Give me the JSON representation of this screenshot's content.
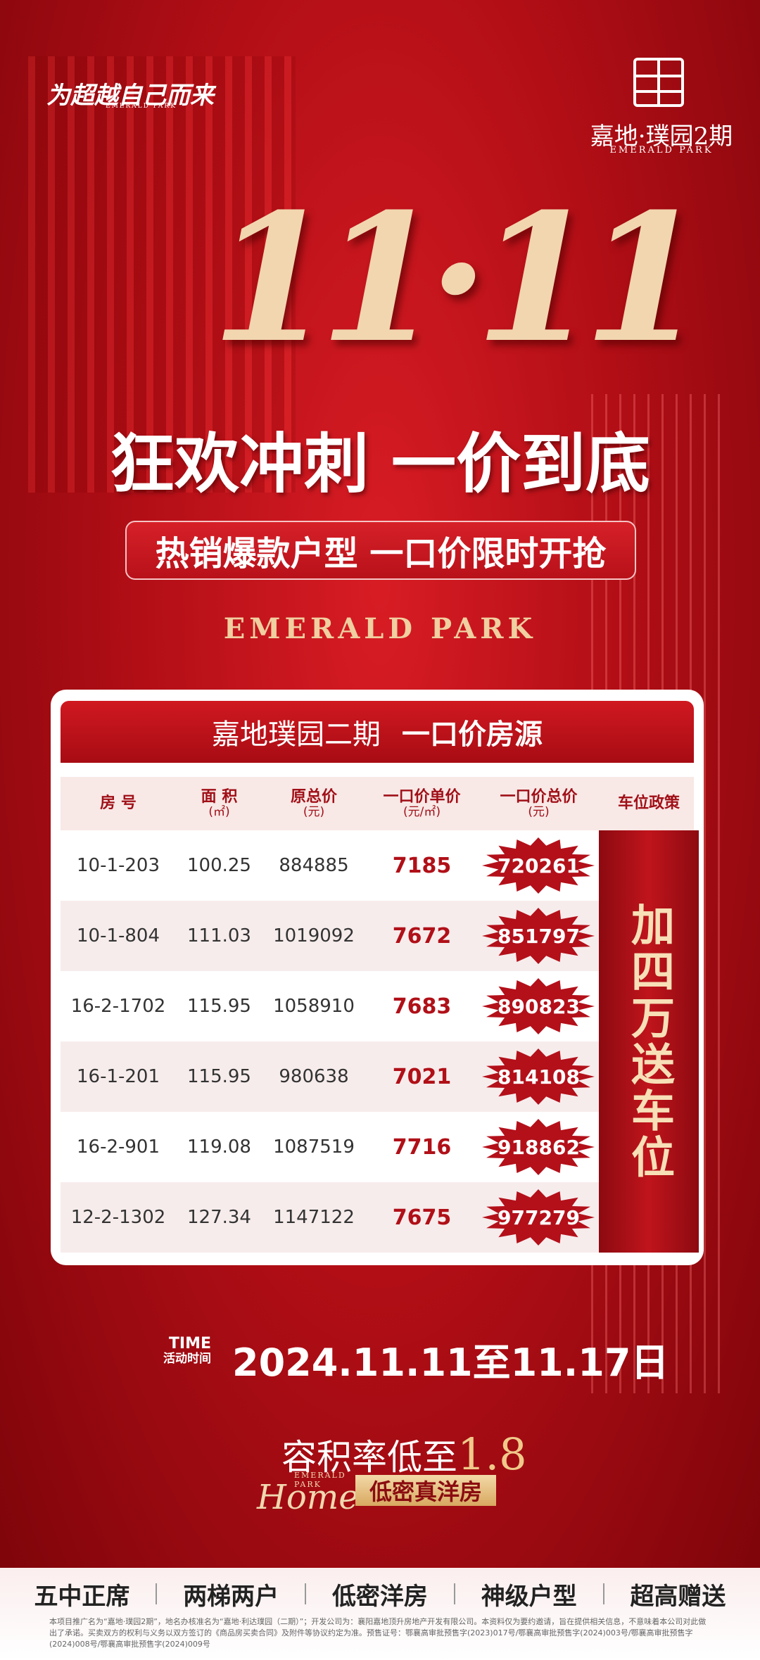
{
  "header": {
    "slogan": "为超越自己而来",
    "slogan_sub": "EMERALD PARK",
    "logo_name": "嘉地·璞园2期",
    "logo_sub": "EMERALD PARK"
  },
  "hero": {
    "date_mark": "11·11",
    "headline": "狂欢冲刺 一价到底",
    "banner": "热销爆款户型 一口价限时开抢",
    "brand": "EMERALD PARK"
  },
  "table": {
    "title_main": "嘉地璞园二期",
    "title_tag": "一口价房源",
    "columns": [
      {
        "label": "房 号"
      },
      {
        "label": "面 积",
        "unit": "(㎡)"
      },
      {
        "label": "原总价",
        "unit": "(元)"
      },
      {
        "label": "一口价单价",
        "unit": "(元/㎡)"
      },
      {
        "label": "一口价总价",
        "unit": "(元)"
      },
      {
        "label": "车位政策"
      }
    ],
    "rows": [
      [
        "10-1-203",
        100.25,
        884885,
        7185,
        720261
      ],
      [
        "10-1-804",
        111.03,
        1019092,
        7672,
        851797
      ],
      [
        "16-2-1702",
        115.95,
        1058910,
        7683,
        890823
      ],
      [
        "16-1-201",
        115.95,
        980638,
        7021,
        814108
      ],
      [
        "16-2-901",
        119.08,
        1087519,
        7716,
        918862
      ],
      [
        "12-2-1302",
        127.34,
        1147122,
        7675,
        977279
      ]
    ],
    "policy": "加四万送车位"
  },
  "event": {
    "time_en": "TIME",
    "time_cn": "活动时间",
    "period": "2024.11.11至11.17日"
  },
  "feature": {
    "ratio_label": "容积率低至",
    "ratio_value": "1.8",
    "script_brand": "EMERALD PARK",
    "script_word": "Home",
    "tag": "低密真洋房"
  },
  "footer": {
    "highlights": [
      "五中正席",
      "两梯两户",
      "低密洋房",
      "神级户型",
      "超高赠送"
    ],
    "disclaimer": "本项目推广名为“嘉地·璞园2期”，地名办核准名为“嘉地·利达璞园（二期）”；开发公司为：襄阳嘉地顶升房地产开发有限公司。本资料仅为要约邀请，旨在提供相关信息，不意味着本公司对此做出了承诺。买卖双方的权利与义务以双方签订的《商品房买卖合同》及附件等协议约定为准。预售证号：鄂襄高审批预售字(2023)017号/鄂襄高审批预售字(2024)003号/鄂襄高审批预售字(2024)008号/鄂襄高审批预售字(2024)009号"
  }
}
